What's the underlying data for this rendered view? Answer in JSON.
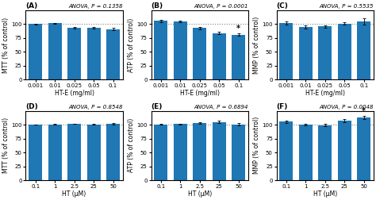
{
  "chart_data": [
    {
      "type": "bar",
      "title": "(A)",
      "subtitle": "ANOVA, P = 0.1358",
      "x_label": "HT-E (mg/ml)",
      "y_label": "MTT (% of control)",
      "categories": [
        "0.001",
        "0.01",
        "0.025",
        "0.05",
        "0.1"
      ],
      "values": [
        100.0,
        101.5,
        93.5,
        93.0,
        91.0
      ],
      "errors": [
        0.5,
        0.6,
        1.5,
        1.8,
        2.2
      ],
      "annotations": [
        null,
        null,
        null,
        null,
        null
      ],
      "reference_line": 100,
      "ylim": [
        0,
        125
      ],
      "yticks": [
        0,
        25,
        50,
        75,
        100
      ]
    },
    {
      "type": "bar",
      "title": "(B)",
      "subtitle": "ANOVA, P = 0.0001",
      "x_label": "HT-E (mg/ml)",
      "y_label": "ATP (% of control)",
      "categories": [
        "0.001",
        "0.01",
        "0.025",
        "0.05",
        "0.1"
      ],
      "values": [
        106.0,
        104.5,
        93.0,
        83.5,
        81.0
      ],
      "errors": [
        2.2,
        1.8,
        2.0,
        2.2,
        2.0
      ],
      "annotations": [
        null,
        null,
        null,
        null,
        "*"
      ],
      "reference_line": 100,
      "ylim": [
        0,
        125
      ],
      "yticks": [
        0,
        25,
        50,
        75,
        100
      ]
    },
    {
      "type": "bar",
      "title": "(C)",
      "subtitle": "ANOVA, P = 0.5535",
      "x_label": "HT-E (mg/ml)",
      "y_label": "MMP (% of control)",
      "categories": [
        "0.001",
        "0.01",
        "0.025",
        "0.05",
        "0.1"
      ],
      "values": [
        101.5,
        95.0,
        95.5,
        101.0,
        104.5
      ],
      "errors": [
        3.0,
        2.5,
        2.0,
        2.5,
        5.5
      ],
      "annotations": [
        null,
        null,
        null,
        null,
        null
      ],
      "reference_line": 100,
      "ylim": [
        0,
        125
      ],
      "yticks": [
        0,
        25,
        50,
        75,
        100
      ]
    },
    {
      "type": "bar",
      "title": "(D)",
      "subtitle": "ANOVA, P = 0.8548",
      "x_label": "HT (μM)",
      "y_label": "MTT (% of control)",
      "categories": [
        "0.1",
        "1",
        "2.5",
        "25",
        "50"
      ],
      "values": [
        100.0,
        100.2,
        101.5,
        100.5,
        101.5
      ],
      "errors": [
        0.6,
        0.6,
        0.7,
        0.8,
        1.0
      ],
      "annotations": [
        null,
        null,
        null,
        null,
        null
      ],
      "reference_line": 100,
      "ylim": [
        0,
        125
      ],
      "yticks": [
        0,
        25,
        50,
        75,
        100
      ]
    },
    {
      "type": "bar",
      "title": "(E)",
      "subtitle": "ANOVA, P = 0.6894",
      "x_label": "HT (μM)",
      "y_label": "ATP (% of control)",
      "categories": [
        "0.1",
        "1",
        "2.5",
        "25",
        "50"
      ],
      "values": [
        100.5,
        100.8,
        103.0,
        104.5,
        100.5
      ],
      "errors": [
        1.0,
        0.9,
        1.2,
        2.2,
        1.8
      ],
      "annotations": [
        null,
        null,
        null,
        null,
        null
      ],
      "reference_line": 100,
      "ylim": [
        0,
        125
      ],
      "yticks": [
        0,
        25,
        50,
        75,
        100
      ]
    },
    {
      "type": "bar",
      "title": "(F)",
      "subtitle": "ANOVA, P = 0.0048",
      "x_label": "HT (μM)",
      "y_label": "MMP (% of control)",
      "categories": [
        "0.1",
        "1",
        "2.5",
        "25",
        "50"
      ],
      "values": [
        105.5,
        99.5,
        99.0,
        107.5,
        113.0
      ],
      "errors": [
        2.2,
        1.5,
        1.8,
        3.0,
        3.0
      ],
      "annotations": [
        null,
        null,
        null,
        null,
        "*"
      ],
      "reference_line": 100,
      "ylim": [
        0,
        125
      ],
      "yticks": [
        0,
        25,
        50,
        75,
        100
      ]
    }
  ]
}
